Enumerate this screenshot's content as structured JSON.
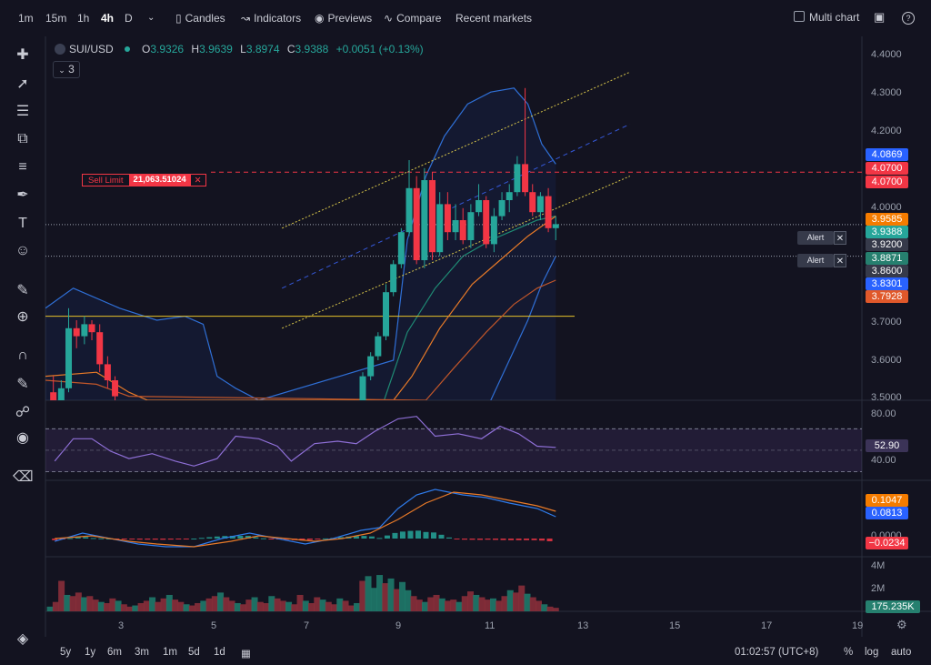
{
  "timeframes": [
    "1m",
    "15m",
    "1h",
    "4h",
    "D"
  ],
  "active_timeframe": "4h",
  "toolbar": {
    "candles": "Candles",
    "indicators": "Indicators",
    "previews": "Previews",
    "compare": "Compare",
    "recent_markets": "Recent markets",
    "multi_chart": "Multi chart"
  },
  "symbol": {
    "name": "SUI/USD",
    "o_label": "O",
    "o": "3.9326",
    "h_label": "H",
    "h": "3.9639",
    "l_label": "L",
    "l": "3.8974",
    "c_label": "C",
    "c": "3.9388",
    "change": "+0.0051 (+0.13%)",
    "indicator_count": "3"
  },
  "sell_limit": {
    "label": "Sell Limit",
    "value": "21,063.51024",
    "close": "✕"
  },
  "alerts": [
    {
      "label": "Alert",
      "close": "✕"
    },
    {
      "label": "Alert",
      "close": "✕"
    }
  ],
  "price_axis": {
    "labels": [
      "4.4000",
      "4.3000",
      "4.2000",
      "4.0000",
      "3.7000",
      "3.6000",
      "3.5000"
    ],
    "boxes": [
      {
        "text": "4.0869",
        "color": "#2962ff"
      },
      {
        "text": "4.0700",
        "color": "#f23645"
      },
      {
        "text": "4.0700",
        "color": "#f23645"
      },
      {
        "text": "3.9585",
        "color": "#f57c00"
      },
      {
        "text": "3.9388",
        "color": "#26a69a"
      },
      {
        "text": "3.9200",
        "color": "#363a4a"
      },
      {
        "text": "3.8871",
        "color": "#26806f"
      },
      {
        "text": "3.8600",
        "color": "#363a4a"
      },
      {
        "text": "3.8301",
        "color": "#2962ff"
      },
      {
        "text": "3.7928",
        "color": "#e0582a"
      }
    ]
  },
  "rsi_axis": {
    "labels": [
      "80.00",
      "40.00"
    ],
    "current": "52.90"
  },
  "macd_axis": {
    "labels": [
      "0.0000"
    ],
    "signal": "0.1047",
    "macd": "0.0813",
    "hist": "−0.0234"
  },
  "volume_axis": {
    "labels": [
      "4M",
      "2M"
    ],
    "current": "175.235K"
  },
  "x_axis": [
    "3",
    "5",
    "7",
    "9",
    "11",
    "13",
    "15",
    "17",
    "19"
  ],
  "ranges": [
    "5y",
    "1y",
    "6m",
    "3m",
    "1m",
    "5d",
    "1d"
  ],
  "clock": "01:02:57 (UTC+8)",
  "scale_buttons": [
    "%",
    "log",
    "auto"
  ],
  "colors": {
    "up": "#26a69a",
    "down": "#f23645",
    "background": "#131320"
  },
  "chart_data": {
    "type": "candlestick",
    "title": "SUI/USD",
    "interval": "4h",
    "ylim": [
      3.5,
      4.4
    ],
    "xlim": [
      1.4,
      19
    ],
    "x_ticks": [
      3,
      5,
      7,
      9,
      11,
      13,
      15,
      17,
      19
    ],
    "candles": [
      {
        "x": 1.57,
        "o": 3.52,
        "h": 3.56,
        "l": 3.48,
        "c": 3.5
      },
      {
        "x": 1.74,
        "o": 3.5,
        "h": 3.55,
        "l": 3.47,
        "c": 3.53
      },
      {
        "x": 1.9,
        "o": 3.53,
        "h": 3.73,
        "l": 3.52,
        "c": 3.68
      },
      {
        "x": 2.07,
        "o": 3.68,
        "h": 3.7,
        "l": 3.63,
        "c": 3.66
      },
      {
        "x": 2.24,
        "o": 3.66,
        "h": 3.71,
        "l": 3.64,
        "c": 3.69
      },
      {
        "x": 2.4,
        "o": 3.69,
        "h": 3.7,
        "l": 3.65,
        "c": 3.67
      },
      {
        "x": 2.57,
        "o": 3.67,
        "h": 3.69,
        "l": 3.57,
        "c": 3.59
      },
      {
        "x": 2.74,
        "o": 3.59,
        "h": 3.61,
        "l": 3.53,
        "c": 3.55
      },
      {
        "x": 2.9,
        "o": 3.55,
        "h": 3.56,
        "l": 3.5,
        "c": 3.51
      },
      {
        "x": 8.24,
        "o": 3.5,
        "h": 3.57,
        "l": 3.49,
        "c": 3.56
      },
      {
        "x": 8.41,
        "o": 3.56,
        "h": 3.62,
        "l": 3.55,
        "c": 3.61
      },
      {
        "x": 8.57,
        "o": 3.61,
        "h": 3.67,
        "l": 3.6,
        "c": 3.66
      },
      {
        "x": 8.74,
        "o": 3.66,
        "h": 3.79,
        "l": 3.65,
        "c": 3.77
      },
      {
        "x": 8.9,
        "o": 3.77,
        "h": 3.85,
        "l": 3.76,
        "c": 3.84
      },
      {
        "x": 9.07,
        "o": 3.84,
        "h": 3.93,
        "l": 3.83,
        "c": 3.92
      },
      {
        "x": 9.24,
        "o": 3.92,
        "h": 4.1,
        "l": 3.91,
        "c": 4.03
      },
      {
        "x": 9.4,
        "o": 4.03,
        "h": 4.06,
        "l": 3.84,
        "c": 3.85
      },
      {
        "x": 9.57,
        "o": 3.85,
        "h": 4.08,
        "l": 3.83,
        "c": 4.05
      },
      {
        "x": 9.74,
        "o": 4.05,
        "h": 4.07,
        "l": 3.85,
        "c": 3.87
      },
      {
        "x": 9.9,
        "o": 3.87,
        "h": 4.02,
        "l": 3.86,
        "c": 3.99
      },
      {
        "x": 10.07,
        "o": 3.99,
        "h": 4.02,
        "l": 3.9,
        "c": 3.92
      },
      {
        "x": 10.24,
        "o": 3.92,
        "h": 3.99,
        "l": 3.9,
        "c": 3.95
      },
      {
        "x": 10.4,
        "o": 3.95,
        "h": 3.98,
        "l": 3.89,
        "c": 3.9
      },
      {
        "x": 10.57,
        "o": 3.9,
        "h": 3.99,
        "l": 3.88,
        "c": 3.97
      },
      {
        "x": 10.74,
        "o": 3.97,
        "h": 4.04,
        "l": 3.96,
        "c": 4.0
      },
      {
        "x": 10.9,
        "o": 4.0,
        "h": 4.01,
        "l": 3.88,
        "c": 3.89
      },
      {
        "x": 11.07,
        "o": 3.89,
        "h": 3.98,
        "l": 3.87,
        "c": 3.96
      },
      {
        "x": 11.24,
        "o": 3.96,
        "h": 4.02,
        "l": 3.95,
        "c": 4.0
      },
      {
        "x": 11.4,
        "o": 4.0,
        "h": 4.04,
        "l": 3.97,
        "c": 4.02
      },
      {
        "x": 11.57,
        "o": 4.02,
        "h": 4.11,
        "l": 4.01,
        "c": 4.09
      },
      {
        "x": 11.74,
        "o": 4.09,
        "h": 4.28,
        "l": 4.01,
        "c": 4.02
      },
      {
        "x": 11.9,
        "o": 4.02,
        "h": 4.04,
        "l": 3.96,
        "c": 3.97
      },
      {
        "x": 12.07,
        "o": 3.97,
        "h": 4.02,
        "l": 3.95,
        "c": 4.01
      },
      {
        "x": 12.24,
        "o": 4.01,
        "h": 4.03,
        "l": 3.92,
        "c": 3.93
      },
      {
        "x": 12.4,
        "o": 3.93,
        "h": 3.96,
        "l": 3.9,
        "c": 3.94
      }
    ],
    "horizontal_lines": [
      {
        "y": 4.07,
        "color": "#f23645",
        "style": "dashed"
      },
      {
        "y": 3.71,
        "color": "#e6c229",
        "style": "solid"
      },
      {
        "y": 3.9388,
        "color": "#9aa0ad",
        "style": "dotted"
      },
      {
        "y": 3.86,
        "color": "#9aa0ad",
        "style": "dotted"
      }
    ],
    "channel": {
      "upper": [
        [
          6.5,
          3.93
        ],
        [
          14,
          4.32
        ]
      ],
      "middle": [
        [
          6.5,
          3.78
        ],
        [
          14,
          4.19
        ]
      ],
      "lower": [
        [
          6.5,
          3.68
        ],
        [
          14,
          4.06
        ]
      ]
    },
    "bollinger": {
      "upper": [
        [
          1.4,
          3.73
        ],
        [
          2.0,
          3.78
        ],
        [
          3.0,
          3.73
        ],
        [
          3.8,
          3.7
        ],
        [
          4.4,
          3.71
        ],
        [
          4.8,
          3.69
        ],
        [
          5.1,
          3.56
        ],
        [
          5.5,
          3.53
        ],
        [
          6.0,
          3.5
        ],
        [
          8.9,
          3.6
        ],
        [
          9.2,
          3.9
        ],
        [
          9.6,
          4.06
        ],
        [
          10.0,
          4.16
        ],
        [
          10.5,
          4.24
        ],
        [
          11.0,
          4.27
        ],
        [
          11.5,
          4.28
        ],
        [
          11.8,
          4.24
        ],
        [
          12.1,
          4.14
        ],
        [
          12.4,
          4.09
        ]
      ],
      "basis": [
        [
          8.7,
          3.5
        ],
        [
          9.2,
          3.67
        ],
        [
          9.8,
          3.78
        ],
        [
          10.4,
          3.86
        ],
        [
          11.0,
          3.9
        ],
        [
          11.6,
          3.93
        ],
        [
          12.0,
          3.95
        ],
        [
          12.4,
          3.96
        ]
      ],
      "lower": [
        [
          11.0,
          3.5
        ],
        [
          11.4,
          3.6
        ],
        [
          11.8,
          3.7
        ],
        [
          12.1,
          3.79
        ],
        [
          12.4,
          3.86
        ]
      ]
    },
    "ma_fast": [
      [
        1.4,
        3.56
      ],
      [
        2.5,
        3.57
      ],
      [
        3.2,
        3.52
      ],
      [
        3.6,
        3.5
      ],
      [
        8.9,
        3.5
      ],
      [
        9.3,
        3.56
      ],
      [
        9.9,
        3.68
      ],
      [
        10.6,
        3.79
      ],
      [
        11.2,
        3.85
      ],
      [
        11.8,
        3.91
      ],
      [
        12.4,
        3.96
      ]
    ],
    "ma_slow": [
      [
        1.4,
        3.55
      ],
      [
        2.5,
        3.54
      ],
      [
        3.2,
        3.51
      ],
      [
        9.6,
        3.5
      ],
      [
        10.2,
        3.58
      ],
      [
        10.9,
        3.67
      ],
      [
        11.5,
        3.74
      ],
      [
        12.0,
        3.78
      ],
      [
        12.4,
        3.8
      ]
    ],
    "rsi": {
      "values": [
        [
          1.6,
          44
        ],
        [
          2.0,
          62
        ],
        [
          2.4,
          62
        ],
        [
          2.8,
          52
        ],
        [
          3.2,
          46
        ],
        [
          3.7,
          50
        ],
        [
          4.2,
          44
        ],
        [
          4.6,
          40
        ],
        [
          5.1,
          46
        ],
        [
          5.5,
          64
        ],
        [
          6.0,
          62
        ],
        [
          6.4,
          56
        ],
        [
          6.7,
          44
        ],
        [
          7.2,
          58
        ],
        [
          7.7,
          60
        ],
        [
          8.1,
          58
        ],
        [
          8.5,
          68
        ],
        [
          9.0,
          78
        ],
        [
          9.4,
          80
        ],
        [
          9.8,
          64
        ],
        [
          10.3,
          66
        ],
        [
          10.8,
          62
        ],
        [
          11.2,
          72
        ],
        [
          11.6,
          66
        ],
        [
          12.0,
          56
        ],
        [
          12.4,
          55
        ]
      ],
      "ylim": [
        30,
        90
      ],
      "upper_band": 70,
      "lower_band": 30
    },
    "macd": {
      "macd_line": [
        [
          1.6,
          -0.01
        ],
        [
          2.2,
          0.02
        ],
        [
          2.8,
          0.0
        ],
        [
          3.4,
          -0.02
        ],
        [
          4.0,
          -0.03
        ],
        [
          4.6,
          -0.03
        ],
        [
          5.2,
          0.0
        ],
        [
          5.8,
          0.02
        ],
        [
          6.4,
          0.0
        ],
        [
          7.0,
          -0.02
        ],
        [
          7.6,
          0.0
        ],
        [
          8.2,
          0.03
        ],
        [
          8.6,
          0.04
        ],
        [
          9.0,
          0.11
        ],
        [
          9.4,
          0.16
        ],
        [
          9.8,
          0.18
        ],
        [
          10.4,
          0.16
        ],
        [
          10.9,
          0.15
        ],
        [
          11.4,
          0.13
        ],
        [
          12.0,
          0.11
        ],
        [
          12.4,
          0.08
        ]
      ],
      "signal_line": [
        [
          1.6,
          0.0
        ],
        [
          2.4,
          0.01
        ],
        [
          3.2,
          -0.01
        ],
        [
          3.8,
          -0.02
        ],
        [
          4.6,
          -0.03
        ],
        [
          5.4,
          -0.01
        ],
        [
          6.0,
          0.01
        ],
        [
          6.6,
          0.0
        ],
        [
          7.2,
          -0.01
        ],
        [
          7.8,
          0.0
        ],
        [
          8.4,
          0.02
        ],
        [
          9.0,
          0.07
        ],
        [
          9.6,
          0.13
        ],
        [
          10.2,
          0.17
        ],
        [
          10.8,
          0.16
        ],
        [
          11.4,
          0.14
        ],
        [
          12.0,
          0.12
        ],
        [
          12.4,
          0.1
        ]
      ],
      "ylim": [
        -0.06,
        0.2
      ]
    },
    "volume": {
      "values_millions": [
        0.4,
        0.8,
        2.6,
        1.4,
        1.3,
        1.6,
        1.2,
        1.3,
        1.0,
        0.8,
        0.7,
        1.1,
        0.9,
        0.6,
        0.4,
        0.5,
        0.7,
        0.9,
        1.2,
        0.8,
        1.1,
        1.4,
        1.0,
        0.8,
        0.6,
        0.5,
        0.7,
        0.9,
        1.1,
        1.3,
        1.6,
        1.2,
        0.9,
        0.7,
        0.6,
        1.0,
        1.2,
        0.8,
        0.7,
        1.3,
        1.1,
        0.9,
        0.8,
        0.6,
        1.4,
        0.9,
        0.7,
        1.2,
        1.0,
        0.8,
        0.6,
        1.1,
        0.9,
        0.5,
        0.7,
        2.6,
        3.0,
        2.0,
        3.1,
        2.4,
        2.8,
        1.9,
        2.5,
        1.8,
        1.3,
        1.0,
        0.8,
        1.2,
        1.4,
        1.1,
        0.9,
        1.0,
        0.8,
        1.3,
        1.7,
        1.4,
        1.2,
        1.0,
        1.1,
        0.9,
        1.3,
        1.8,
        1.6,
        2.2,
        1.5,
        1.2,
        0.9,
        0.6,
        0.4,
        0.3
      ],
      "ylim": [
        0,
        4.5
      ]
    }
  }
}
